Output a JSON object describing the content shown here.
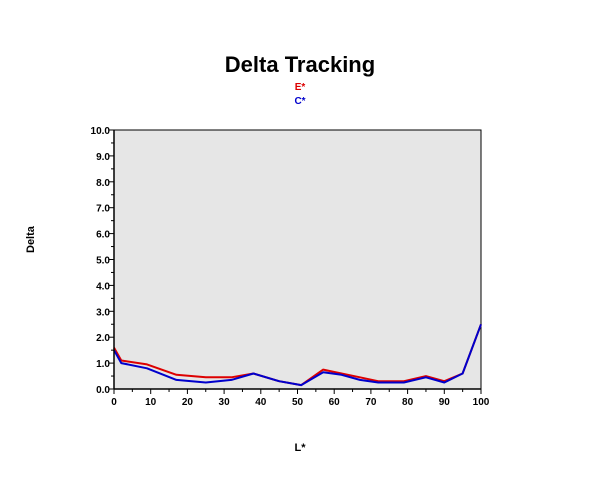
{
  "chart_data": {
    "type": "line",
    "title": "Delta Tracking",
    "xlabel": "L*",
    "ylabel": "Delta",
    "xlim": [
      0,
      100
    ],
    "ylim": [
      0,
      10
    ],
    "x_ticks": [
      0,
      10,
      20,
      30,
      40,
      50,
      60,
      70,
      80,
      90,
      100
    ],
    "x_tick_labels": [
      "0",
      "10",
      "20",
      "30",
      "40",
      "50",
      "60",
      "70",
      "80",
      "90",
      "100"
    ],
    "y_ticks": [
      0,
      1,
      2,
      3,
      4,
      5,
      6,
      7,
      8,
      9,
      10
    ],
    "y_tick_labels": [
      "0.0",
      "1.0",
      "2.0",
      "3.0",
      "4.0",
      "5.0",
      "6.0",
      "7.0",
      "8.0",
      "9.0",
      "10.0"
    ],
    "plot_background": "#e6e6e6",
    "legend_position": "top-center",
    "series": [
      {
        "name": "E*",
        "color": "#dd0000",
        "x": [
          0,
          2,
          9,
          17,
          25,
          32,
          38,
          45,
          51,
          57,
          62,
          67,
          72,
          79,
          85,
          90,
          95,
          100
        ],
        "y": [
          1.6,
          1.1,
          0.95,
          0.55,
          0.45,
          0.45,
          0.6,
          0.3,
          0.15,
          0.75,
          0.6,
          0.45,
          0.3,
          0.3,
          0.5,
          0.3,
          0.6,
          2.5
        ]
      },
      {
        "name": "C*",
        "color": "#0000cc",
        "x": [
          0,
          2,
          9,
          17,
          25,
          32,
          38,
          45,
          51,
          57,
          62,
          67,
          72,
          79,
          85,
          90,
          95,
          100
        ],
        "y": [
          1.5,
          1.0,
          0.8,
          0.35,
          0.25,
          0.35,
          0.6,
          0.3,
          0.15,
          0.65,
          0.55,
          0.35,
          0.25,
          0.25,
          0.45,
          0.25,
          0.6,
          2.5
        ]
      }
    ]
  }
}
